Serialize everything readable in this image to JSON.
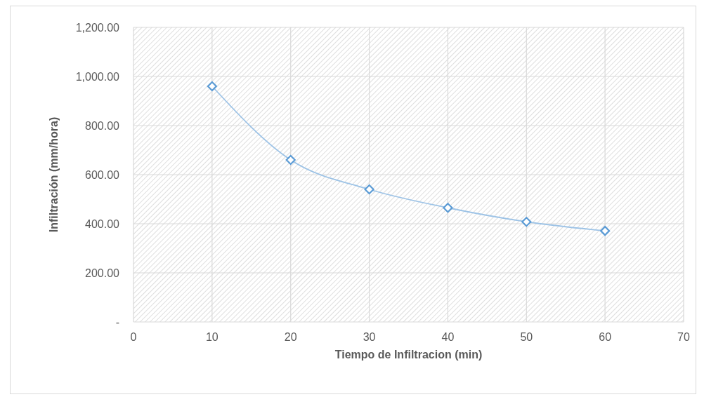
{
  "chart_data": {
    "type": "line",
    "xlabel": "Tiempo de Infiltracion (min)",
    "ylabel": "Infiltración (mm/hora)",
    "x": [
      10,
      20,
      30,
      40,
      50,
      60
    ],
    "series": [
      {
        "color": "#5b9bd5",
        "values": [
          960,
          660,
          540,
          465,
          408,
          371
        ]
      }
    ],
    "xlim": [
      0,
      70
    ],
    "xticks": [
      0,
      10,
      20,
      30,
      40,
      50,
      60,
      70
    ],
    "ylim": [
      0,
      1200
    ],
    "yticks": [
      {
        "value": 0,
        "label": "-"
      },
      {
        "value": 200,
        "label": "200.00"
      },
      {
        "value": 400,
        "label": "400.00"
      },
      {
        "value": 600,
        "label": "600.00"
      },
      {
        "value": 800,
        "label": "800.00"
      },
      {
        "value": 1000,
        "label": "1,000.00"
      },
      {
        "value": 1200,
        "label": "1,200.00"
      }
    ],
    "grid": true,
    "marker": "diamond",
    "line_style": "solid"
  }
}
